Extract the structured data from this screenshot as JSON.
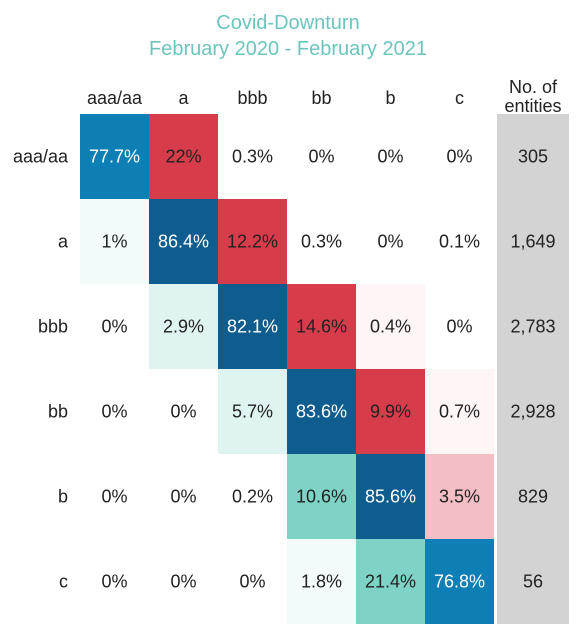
{
  "chart_data": {
    "type": "heatmap",
    "title": "Covid-Downturn",
    "subtitle": "February 2020 - February 2021",
    "columns": [
      "aaa/aa",
      "a",
      "bbb",
      "bb",
      "b",
      "c"
    ],
    "rows": [
      "aaa/aa",
      "a",
      "bbb",
      "bb",
      "b",
      "c"
    ],
    "entities_header": "No. of entities",
    "entities_header_lines": [
      "No. of",
      "entities"
    ],
    "values": [
      [
        77.7,
        22,
        0.3,
        0,
        0,
        0
      ],
      [
        1,
        86.4,
        12.2,
        0.3,
        0,
        0.1
      ],
      [
        0,
        2.9,
        82.1,
        14.6,
        0.4,
        0
      ],
      [
        0,
        0,
        5.7,
        83.6,
        9.9,
        0.7
      ],
      [
        0,
        0,
        0.2,
        10.6,
        85.6,
        3.5
      ],
      [
        0,
        0,
        0,
        1.8,
        21.4,
        76.8
      ]
    ],
    "labels": [
      [
        "77.7%",
        "22%",
        "0.3%",
        "0%",
        "0%",
        "0%"
      ],
      [
        "1%",
        "86.4%",
        "12.2%",
        "0.3%",
        "0%",
        "0.1%"
      ],
      [
        "0%",
        "2.9%",
        "82.1%",
        "14.6%",
        "0.4%",
        "0%"
      ],
      [
        "0%",
        "0%",
        "5.7%",
        "83.6%",
        "9.9%",
        "0.7%"
      ],
      [
        "0%",
        "0%",
        "0.2%",
        "10.6%",
        "85.6%",
        "3.5%"
      ],
      [
        "0%",
        "0%",
        "0%",
        "1.8%",
        "21.4%",
        "76.8%"
      ]
    ],
    "entities": [
      "305",
      "1,649",
      "2,783",
      "2,928",
      "829",
      "56"
    ],
    "colors": {
      "stable_dark": "#0f5d8e",
      "stable": "#0d7fb4",
      "downgrade_high": "#d73c4a",
      "downgrade_low": "#f3bfc5",
      "downgrade_faint": "#fef5f7",
      "upgrade_high": "#7fd3c6",
      "upgrade_mid": "#dff3f1",
      "upgrade_faint": "#f2fbfa",
      "entities_bg": "#d3d3d3",
      "title": "#6cc5bc",
      "text": "#222222"
    }
  }
}
